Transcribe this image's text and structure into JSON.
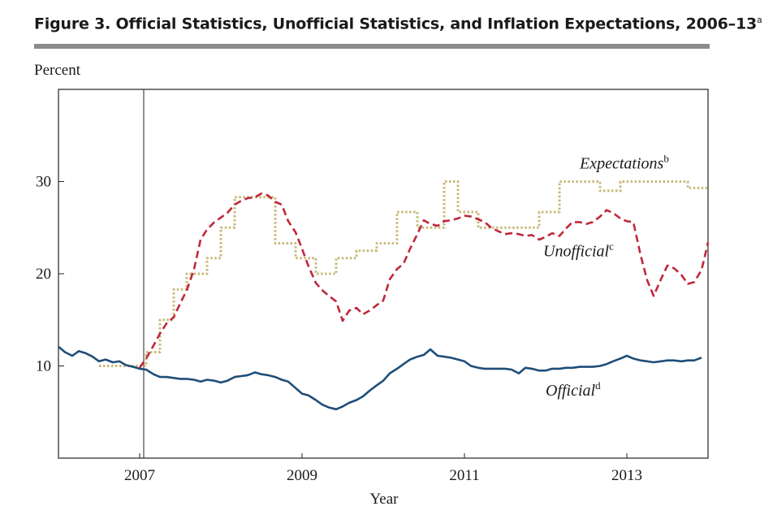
{
  "figure": {
    "title": "Figure 3.  Official Statistics, Unofficial Statistics, and Inflation Expectations, 2006–13",
    "title_note_marker": "a"
  },
  "chart_data": {
    "type": "line",
    "ylabel": "Percent",
    "xlabel": "Year",
    "xlim": [
      2006.0,
      2014.0
    ],
    "ylim": [
      0,
      40
    ],
    "xticks": [
      2007,
      2009,
      2011,
      2013
    ],
    "yticks": [
      10,
      20,
      30
    ],
    "grid": false,
    "reference_line_x": 2007.05,
    "colors": {
      "official": "#1f4e79",
      "unofficial": "#c0283a",
      "expectations": "#c9b97a",
      "axes": "#222222"
    },
    "series": [
      {
        "name": "Official",
        "note_marker": "d",
        "style": "solid",
        "points": [
          [
            2006.0,
            12.1
          ],
          [
            2006.08,
            11.5
          ],
          [
            2006.17,
            11.1
          ],
          [
            2006.25,
            11.6
          ],
          [
            2006.33,
            11.4
          ],
          [
            2006.42,
            11.0
          ],
          [
            2006.5,
            10.5
          ],
          [
            2006.58,
            10.7
          ],
          [
            2006.67,
            10.4
          ],
          [
            2006.75,
            10.5
          ],
          [
            2006.83,
            10.1
          ],
          [
            2006.92,
            9.9
          ],
          [
            2007.0,
            9.7
          ],
          [
            2007.08,
            9.6
          ],
          [
            2007.17,
            9.1
          ],
          [
            2007.25,
            8.8
          ],
          [
            2007.33,
            8.8
          ],
          [
            2007.42,
            8.7
          ],
          [
            2007.5,
            8.6
          ],
          [
            2007.58,
            8.6
          ],
          [
            2007.67,
            8.5
          ],
          [
            2007.75,
            8.3
          ],
          [
            2007.83,
            8.5
          ],
          [
            2007.92,
            8.4
          ],
          [
            2008.0,
            8.2
          ],
          [
            2008.08,
            8.4
          ],
          [
            2008.17,
            8.8
          ],
          [
            2008.25,
            8.9
          ],
          [
            2008.33,
            9.0
          ],
          [
            2008.42,
            9.3
          ],
          [
            2008.5,
            9.1
          ],
          [
            2008.58,
            9.0
          ],
          [
            2008.67,
            8.8
          ],
          [
            2008.75,
            8.5
          ],
          [
            2008.83,
            8.3
          ],
          [
            2008.92,
            7.6
          ],
          [
            2009.0,
            7.0
          ],
          [
            2009.08,
            6.8
          ],
          [
            2009.17,
            6.3
          ],
          [
            2009.25,
            5.8
          ],
          [
            2009.33,
            5.5
          ],
          [
            2009.42,
            5.3
          ],
          [
            2009.5,
            5.6
          ],
          [
            2009.58,
            6.0
          ],
          [
            2009.67,
            6.3
          ],
          [
            2009.75,
            6.7
          ],
          [
            2009.83,
            7.3
          ],
          [
            2009.92,
            7.9
          ],
          [
            2010.0,
            8.4
          ],
          [
            2010.08,
            9.2
          ],
          [
            2010.17,
            9.7
          ],
          [
            2010.25,
            10.2
          ],
          [
            2010.33,
            10.7
          ],
          [
            2010.42,
            11.0
          ],
          [
            2010.5,
            11.2
          ],
          [
            2010.58,
            11.8
          ],
          [
            2010.67,
            11.1
          ],
          [
            2010.75,
            11.0
          ],
          [
            2010.83,
            10.9
          ],
          [
            2010.92,
            10.7
          ],
          [
            2011.0,
            10.5
          ],
          [
            2011.08,
            10.0
          ],
          [
            2011.17,
            9.8
          ],
          [
            2011.25,
            9.7
          ],
          [
            2011.33,
            9.7
          ],
          [
            2011.42,
            9.7
          ],
          [
            2011.5,
            9.7
          ],
          [
            2011.58,
            9.6
          ],
          [
            2011.67,
            9.2
          ],
          [
            2011.75,
            9.8
          ],
          [
            2011.83,
            9.7
          ],
          [
            2011.92,
            9.5
          ],
          [
            2012.0,
            9.5
          ],
          [
            2012.08,
            9.7
          ],
          [
            2012.17,
            9.7
          ],
          [
            2012.25,
            9.8
          ],
          [
            2012.33,
            9.8
          ],
          [
            2012.42,
            9.9
          ],
          [
            2012.5,
            9.9
          ],
          [
            2012.58,
            9.9
          ],
          [
            2012.67,
            10.0
          ],
          [
            2012.75,
            10.2
          ],
          [
            2012.83,
            10.5
          ],
          [
            2012.92,
            10.8
          ],
          [
            2013.0,
            11.1
          ],
          [
            2013.08,
            10.8
          ],
          [
            2013.17,
            10.6
          ],
          [
            2013.25,
            10.5
          ],
          [
            2013.33,
            10.4
          ],
          [
            2013.42,
            10.5
          ],
          [
            2013.5,
            10.6
          ],
          [
            2013.58,
            10.6
          ],
          [
            2013.67,
            10.5
          ],
          [
            2013.75,
            10.6
          ],
          [
            2013.83,
            10.6
          ],
          [
            2013.92,
            10.9
          ]
        ]
      },
      {
        "name": "Unofficial",
        "note_marker": "c",
        "style": "dashed",
        "points": [
          [
            2007.0,
            9.8
          ],
          [
            2007.08,
            10.8
          ],
          [
            2007.17,
            12.2
          ],
          [
            2007.25,
            13.5
          ],
          [
            2007.33,
            14.6
          ],
          [
            2007.42,
            15.3
          ],
          [
            2007.5,
            16.8
          ],
          [
            2007.58,
            18.2
          ],
          [
            2007.67,
            20.5
          ],
          [
            2007.75,
            23.7
          ],
          [
            2007.83,
            24.8
          ],
          [
            2007.92,
            25.6
          ],
          [
            2008.0,
            26.1
          ],
          [
            2008.08,
            26.6
          ],
          [
            2008.17,
            27.5
          ],
          [
            2008.25,
            27.9
          ],
          [
            2008.33,
            28.2
          ],
          [
            2008.42,
            28.3
          ],
          [
            2008.5,
            28.7
          ],
          [
            2008.58,
            28.5
          ],
          [
            2008.67,
            27.8
          ],
          [
            2008.75,
            27.5
          ],
          [
            2008.83,
            25.7
          ],
          [
            2008.92,
            24.5
          ],
          [
            2009.0,
            22.7
          ],
          [
            2009.08,
            20.8
          ],
          [
            2009.17,
            19.0
          ],
          [
            2009.25,
            18.2
          ],
          [
            2009.33,
            17.6
          ],
          [
            2009.42,
            17.0
          ],
          [
            2009.5,
            14.9
          ],
          [
            2009.58,
            16.0
          ],
          [
            2009.67,
            16.3
          ],
          [
            2009.75,
            15.6
          ],
          [
            2009.83,
            16.0
          ],
          [
            2009.92,
            16.6
          ],
          [
            2010.0,
            17.1
          ],
          [
            2010.08,
            19.4
          ],
          [
            2010.17,
            20.5
          ],
          [
            2010.25,
            21.1
          ],
          [
            2010.33,
            22.7
          ],
          [
            2010.42,
            24.3
          ],
          [
            2010.5,
            25.8
          ],
          [
            2010.58,
            25.4
          ],
          [
            2010.67,
            25.2
          ],
          [
            2010.75,
            25.7
          ],
          [
            2010.83,
            25.8
          ],
          [
            2010.92,
            26.0
          ],
          [
            2011.0,
            26.3
          ],
          [
            2011.08,
            26.2
          ],
          [
            2011.17,
            25.9
          ],
          [
            2011.25,
            25.6
          ],
          [
            2011.33,
            25.0
          ],
          [
            2011.42,
            24.6
          ],
          [
            2011.5,
            24.3
          ],
          [
            2011.58,
            24.4
          ],
          [
            2011.67,
            24.3
          ],
          [
            2011.75,
            24.1
          ],
          [
            2011.83,
            24.2
          ],
          [
            2011.92,
            23.7
          ],
          [
            2012.0,
            24.0
          ],
          [
            2012.08,
            24.4
          ],
          [
            2012.17,
            24.1
          ],
          [
            2012.25,
            24.9
          ],
          [
            2012.33,
            25.6
          ],
          [
            2012.42,
            25.6
          ],
          [
            2012.5,
            25.4
          ],
          [
            2012.58,
            25.6
          ],
          [
            2012.67,
            26.2
          ],
          [
            2012.75,
            26.9
          ],
          [
            2012.83,
            26.6
          ],
          [
            2012.92,
            26.0
          ],
          [
            2013.0,
            25.7
          ],
          [
            2013.08,
            25.6
          ],
          [
            2013.17,
            22.0
          ],
          [
            2013.25,
            19.3
          ],
          [
            2013.33,
            17.6
          ],
          [
            2013.42,
            19.4
          ],
          [
            2013.5,
            20.9
          ],
          [
            2013.58,
            20.6
          ],
          [
            2013.67,
            19.9
          ],
          [
            2013.75,
            18.9
          ],
          [
            2013.83,
            19.1
          ],
          [
            2013.92,
            20.4
          ],
          [
            2014.0,
            23.4
          ]
        ]
      },
      {
        "name": "Expectations",
        "note_marker": "b",
        "style": "dotted",
        "points": [
          [
            2006.5,
            10.0
          ],
          [
            2007.08,
            10.0
          ],
          [
            2007.08,
            11.5
          ],
          [
            2007.25,
            11.5
          ],
          [
            2007.25,
            15.0
          ],
          [
            2007.42,
            15.0
          ],
          [
            2007.42,
            18.3
          ],
          [
            2007.58,
            18.3
          ],
          [
            2007.58,
            20.0
          ],
          [
            2007.83,
            20.0
          ],
          [
            2007.83,
            21.7
          ],
          [
            2008.0,
            21.7
          ],
          [
            2008.0,
            25.0
          ],
          [
            2008.17,
            25.0
          ],
          [
            2008.17,
            28.3
          ],
          [
            2008.67,
            28.3
          ],
          [
            2008.67,
            23.3
          ],
          [
            2008.92,
            23.3
          ],
          [
            2008.92,
            21.7
          ],
          [
            2009.17,
            21.7
          ],
          [
            2009.17,
            20.0
          ],
          [
            2009.42,
            20.0
          ],
          [
            2009.42,
            21.7
          ],
          [
            2009.67,
            21.7
          ],
          [
            2009.67,
            22.5
          ],
          [
            2009.92,
            22.5
          ],
          [
            2009.92,
            23.3
          ],
          [
            2010.17,
            23.3
          ],
          [
            2010.17,
            26.7
          ],
          [
            2010.42,
            26.7
          ],
          [
            2010.42,
            25.0
          ],
          [
            2010.75,
            25.0
          ],
          [
            2010.75,
            30.0
          ],
          [
            2010.92,
            30.0
          ],
          [
            2010.92,
            26.7
          ],
          [
            2011.17,
            26.7
          ],
          [
            2011.17,
            25.0
          ],
          [
            2011.92,
            25.0
          ],
          [
            2011.92,
            26.7
          ],
          [
            2012.17,
            26.7
          ],
          [
            2012.17,
            30.0
          ],
          [
            2012.67,
            30.0
          ],
          [
            2012.67,
            29.0
          ],
          [
            2012.92,
            29.0
          ],
          [
            2012.92,
            30.0
          ],
          [
            2013.75,
            30.0
          ],
          [
            2013.75,
            29.3
          ],
          [
            2014.0,
            29.3
          ]
        ]
      }
    ],
    "annotations": [
      {
        "series": "Expectations",
        "text": "Expectations",
        "marker": "b",
        "x": 2012.42,
        "y": 31.4
      },
      {
        "series": "Unofficial",
        "text": "Unofficial",
        "marker": "c",
        "x": 2011.97,
        "y": 21.9
      },
      {
        "series": "Official",
        "text": "Official",
        "marker": "d",
        "x": 2012.0,
        "y": 6.8
      }
    ]
  }
}
